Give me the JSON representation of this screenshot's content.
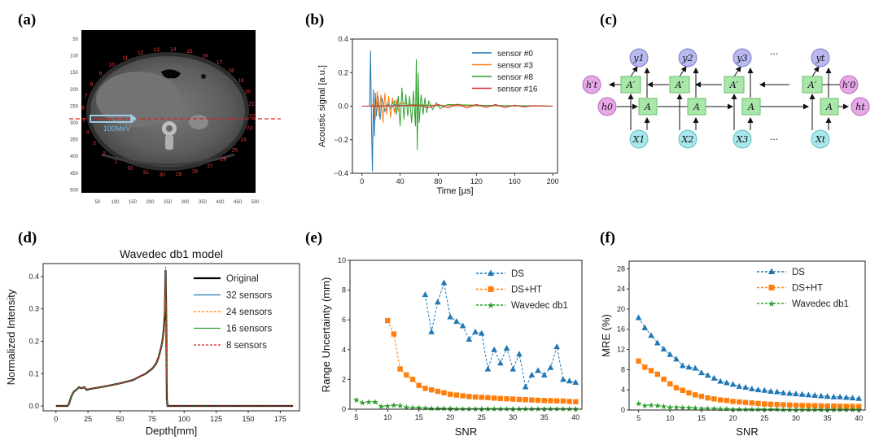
{
  "panels": {
    "a": "(a)",
    "b": "(b)",
    "c": "(c)",
    "d": "(d)",
    "e": "(e)",
    "f": "(f)"
  },
  "ct": {
    "beam_label": "100MeV",
    "x_ticks": [
      "50",
      "100",
      "150",
      "200",
      "250",
      "300",
      "350",
      "400",
      "450",
      "500"
    ],
    "y_ticks": [
      "50",
      "100",
      "150",
      "200",
      "250",
      "300",
      "350",
      "400",
      "450",
      "500"
    ],
    "sensor_numbers": [
      "10",
      "11",
      "12",
      "13",
      "14",
      "15",
      "16",
      "17",
      "18",
      "19",
      "20",
      "21",
      "22",
      "23",
      "24",
      "25",
      "26",
      "27",
      "28",
      "29",
      "30",
      "31",
      "32",
      "1",
      "2",
      "3",
      "4",
      "5",
      "6",
      "7",
      "8",
      "9"
    ]
  },
  "rnn": {
    "outputs": [
      "y1",
      "y2",
      "y3",
      "yt"
    ],
    "inputs": [
      "X1",
      "X2",
      "X3",
      "Xt"
    ],
    "cell_fwd": "A",
    "cell_bwd": "A′",
    "h0": "h0",
    "ht": "ht",
    "hpt": "h′t",
    "hp0": "h′0",
    "ellipsis": "···"
  },
  "chart_data": [
    {
      "id": "b",
      "type": "line",
      "xlabel": "Time [μs]",
      "ylabel": "Acoustic signal [a.u.]",
      "xlim": [
        -10,
        205
      ],
      "ylim": [
        -0.4,
        0.4
      ],
      "x_ticks": [
        0,
        40,
        80,
        120,
        160,
        200
      ],
      "y_ticks": [
        -0.4,
        -0.2,
        0.0,
        0.2,
        0.4
      ],
      "y_tick_labels": [
        "−0.4",
        "−0.2",
        "0.0",
        "0.2",
        "0.4"
      ],
      "grid": false,
      "legend": "top-right",
      "series": [
        {
          "name": "sensor #0",
          "color": "#1f77b4",
          "x": [
            0,
            5,
            8,
            9,
            10,
            11,
            12,
            13,
            14,
            15,
            17,
            19,
            21,
            24,
            27,
            30,
            34,
            40,
            50,
            60,
            70,
            80,
            90,
            100,
            120,
            140,
            160,
            180,
            200
          ],
          "y": [
            0,
            0,
            0,
            0.33,
            -0.1,
            -0.39,
            0.1,
            -0.18,
            0.08,
            -0.06,
            0.06,
            -0.08,
            0.05,
            -0.03,
            0.02,
            -0.015,
            0.01,
            0.005,
            0.005,
            0.004,
            0.004,
            0.003,
            0.003,
            0.002,
            0.002,
            0.002,
            0.001,
            0.001,
            0
          ]
        },
        {
          "name": "sensor #3",
          "color": "#ff7f0e",
          "x": [
            0,
            10,
            12,
            14,
            16,
            18,
            20,
            22,
            24,
            26,
            28,
            30,
            32,
            34,
            36,
            38,
            40,
            45,
            50,
            60,
            80,
            100,
            140,
            200
          ],
          "y": [
            0,
            0,
            0.02,
            -0.08,
            0.09,
            -0.06,
            0.07,
            -0.1,
            0.08,
            -0.05,
            0.06,
            -0.07,
            0.05,
            -0.04,
            0.04,
            -0.03,
            0.02,
            0.015,
            0.01,
            0.008,
            0.005,
            0.003,
            0.002,
            0
          ]
        },
        {
          "name": "sensor #8",
          "color": "#2ca02c",
          "x": [
            0,
            30,
            34,
            36,
            38,
            40,
            42,
            44,
            46,
            48,
            50,
            52,
            54,
            56,
            57,
            58,
            59,
            60,
            62,
            64,
            66,
            68,
            70,
            74,
            78,
            82,
            90,
            100,
            120,
            140,
            160,
            180,
            200
          ],
          "y": [
            0,
            0,
            0.03,
            -0.05,
            0.06,
            -0.12,
            0.11,
            -0.08,
            0.07,
            -0.06,
            0.06,
            -0.1,
            0.09,
            -0.12,
            0.28,
            -0.26,
            0.2,
            -0.1,
            0.07,
            -0.05,
            0.05,
            -0.04,
            0.03,
            -0.02,
            0.02,
            -0.015,
            0.01,
            0.008,
            0.006,
            0.004,
            0.003,
            0.002,
            0
          ]
        },
        {
          "name": "sensor #16",
          "color": "#d62728",
          "x": [
            0,
            60,
            70,
            80,
            90,
            100,
            110,
            120,
            130,
            140,
            150,
            160,
            170,
            180,
            200
          ],
          "y": [
            0,
            0.004,
            -0.008,
            0.01,
            -0.01,
            0.012,
            -0.01,
            0.01,
            -0.008,
            0.01,
            -0.008,
            0.006,
            -0.005,
            0.003,
            0
          ]
        }
      ]
    },
    {
      "id": "d",
      "type": "line",
      "title": "Wavedec db1 model",
      "xlabel": "Depth[mm]",
      "ylabel": "Normalized Intensity",
      "xlim": [
        -10,
        190
      ],
      "ylim": [
        -0.015,
        0.44
      ],
      "x_ticks": [
        0,
        25,
        50,
        75,
        100,
        125,
        150,
        175
      ],
      "y_ticks": [
        0.0,
        0.1,
        0.2,
        0.3,
        0.4
      ],
      "y_tick_labels": [
        "0.0",
        "0.1",
        "0.2",
        "0.3",
        "0.4"
      ],
      "grid": false,
      "legend": "top-right",
      "depth_mm": [
        0,
        9,
        10,
        12,
        14,
        16,
        18,
        20,
        22,
        24,
        26,
        30,
        40,
        50,
        60,
        65,
        70,
        75,
        78,
        80,
        82,
        83,
        84,
        85,
        85.5,
        86,
        86.5,
        87,
        88,
        100,
        125,
        150,
        185
      ],
      "series": [
        {
          "name": "Original",
          "color": "#000000",
          "style": "solid",
          "width": 2.2,
          "values": [
            0,
            0,
            0.005,
            0.03,
            0.045,
            0.05,
            0.058,
            0.055,
            0.058,
            0.05,
            0.052,
            0.055,
            0.062,
            0.07,
            0.08,
            0.09,
            0.1,
            0.115,
            0.13,
            0.15,
            0.18,
            0.2,
            0.23,
            0.29,
            0.42,
            0.3,
            0.02,
            0,
            0,
            0,
            0,
            0,
            0
          ]
        },
        {
          "name": "32 sensors",
          "color": "#1f77b4",
          "style": "solid",
          "width": 1.0,
          "values": [
            0,
            0,
            0.005,
            0.03,
            0.046,
            0.05,
            0.057,
            0.056,
            0.057,
            0.051,
            0.052,
            0.055,
            0.062,
            0.07,
            0.08,
            0.09,
            0.1,
            0.115,
            0.13,
            0.15,
            0.18,
            0.2,
            0.23,
            0.29,
            0.41,
            0.3,
            0.02,
            0,
            0,
            0,
            0,
            0,
            0
          ]
        },
        {
          "name": "24 sensors",
          "color": "#ff7f0e",
          "style": "dashed",
          "width": 1.0,
          "values": [
            0,
            0,
            0.005,
            0.03,
            0.046,
            0.05,
            0.057,
            0.056,
            0.057,
            0.051,
            0.052,
            0.055,
            0.062,
            0.07,
            0.08,
            0.09,
            0.1,
            0.115,
            0.13,
            0.15,
            0.18,
            0.2,
            0.23,
            0.29,
            0.41,
            0.3,
            0.02,
            0,
            0,
            0,
            0,
            0,
            0
          ]
        },
        {
          "name": "16 sensors",
          "color": "#2ca02c",
          "style": "solid",
          "width": 1.0,
          "values": [
            0,
            0,
            0.005,
            0.03,
            0.045,
            0.05,
            0.057,
            0.056,
            0.057,
            0.051,
            0.052,
            0.055,
            0.062,
            0.07,
            0.08,
            0.09,
            0.1,
            0.115,
            0.13,
            0.15,
            0.18,
            0.2,
            0.23,
            0.29,
            0.41,
            0.3,
            0.02,
            0,
            0,
            0,
            0,
            0,
            0
          ]
        },
        {
          "name": "8 sensors",
          "color": "#d62728",
          "style": "dashed",
          "width": 1.0,
          "values": [
            0,
            0,
            0.005,
            0.03,
            0.045,
            0.05,
            0.057,
            0.056,
            0.057,
            0.051,
            0.052,
            0.055,
            0.062,
            0.07,
            0.08,
            0.09,
            0.1,
            0.115,
            0.13,
            0.15,
            0.18,
            0.2,
            0.23,
            0.29,
            0.43,
            0.3,
            0.02,
            0,
            0,
            0,
            0,
            0,
            0
          ]
        }
      ]
    },
    {
      "id": "e",
      "type": "line",
      "xlabel": "SNR",
      "ylabel": "Range Uncertainty (mm)",
      "xlim": [
        4,
        41
      ],
      "ylim": [
        0,
        10
      ],
      "x_ticks": [
        5,
        10,
        15,
        20,
        25,
        30,
        35,
        40
      ],
      "y_ticks": [
        0,
        2,
        4,
        6,
        8,
        10
      ],
      "grid": false,
      "legend": "top-right",
      "series": [
        {
          "name": "DS",
          "color": "#1f77b4",
          "marker": "triangle",
          "x": [
            16,
            17,
            18,
            19,
            20,
            21,
            22,
            23,
            24,
            25,
            26,
            27,
            28,
            29,
            30,
            31,
            32,
            33,
            34,
            35,
            36,
            37,
            38,
            39,
            40
          ],
          "y": [
            7.7,
            5.2,
            7.2,
            8.5,
            6.2,
            5.9,
            5.6,
            4.7,
            5.2,
            5.1,
            2.7,
            4.0,
            3.1,
            4.1,
            2.7,
            3.7,
            1.5,
            2.3,
            2.6,
            2.3,
            2.8,
            4.2,
            2.0,
            1.9,
            1.8
          ]
        },
        {
          "name": "DS+HT",
          "color": "#ff7f0e",
          "marker": "square",
          "x": [
            10,
            11,
            12,
            13,
            14,
            15,
            16,
            17,
            18,
            19,
            20,
            21,
            22,
            23,
            24,
            25,
            26,
            27,
            28,
            29,
            30,
            31,
            32,
            33,
            34,
            35,
            36,
            37,
            38,
            39,
            40
          ],
          "y": [
            5.95,
            5.05,
            2.7,
            2.3,
            2.0,
            1.6,
            1.4,
            1.3,
            1.2,
            1.1,
            1.0,
            0.95,
            0.9,
            0.85,
            0.82,
            0.8,
            0.78,
            0.75,
            0.72,
            0.7,
            0.68,
            0.66,
            0.64,
            0.62,
            0.6,
            0.58,
            0.57,
            0.56,
            0.55,
            0.52,
            0.5
          ]
        },
        {
          "name": "Wavedec db1",
          "color": "#2ca02c",
          "marker": "star",
          "x": [
            5,
            6,
            7,
            8,
            9,
            10,
            11,
            12,
            13,
            14,
            15,
            16,
            17,
            18,
            19,
            20,
            21,
            22,
            23,
            24,
            25,
            26,
            27,
            28,
            29,
            30,
            31,
            32,
            33,
            34,
            35,
            36,
            37,
            38,
            39,
            40
          ],
          "y": [
            0.62,
            0.45,
            0.5,
            0.48,
            0.2,
            0.22,
            0.28,
            0.25,
            0.15,
            0.1,
            0.1,
            0.08,
            0.05,
            0.06,
            0.05,
            0.05,
            0.04,
            0.04,
            0.03,
            0.03,
            0.03,
            0.03,
            0.02,
            0.02,
            0.02,
            0.02,
            0.02,
            0.02,
            0.02,
            0.02,
            0.02,
            0.02,
            0.02,
            0.02,
            0.02,
            0.02
          ]
        }
      ]
    },
    {
      "id": "f",
      "type": "line",
      "xlabel": "SNR",
      "ylabel": "MRE (%)",
      "xlim": [
        3.5,
        41
      ],
      "ylim": [
        0,
        29.5
      ],
      "x_ticks": [
        5,
        10,
        15,
        20,
        25,
        30,
        35,
        40
      ],
      "y_ticks": [
        0,
        4,
        8,
        12,
        16,
        20,
        24,
        28
      ],
      "grid": false,
      "legend": "top-right",
      "series": [
        {
          "name": "DS",
          "color": "#1f77b4",
          "marker": "triangle",
          "x": [
            5,
            6,
            7,
            8,
            9,
            10,
            11,
            12,
            13,
            14,
            15,
            16,
            17,
            18,
            19,
            20,
            21,
            22,
            23,
            24,
            25,
            26,
            27,
            28,
            29,
            30,
            31,
            32,
            33,
            34,
            35,
            36,
            37,
            38,
            39,
            40
          ],
          "y": [
            18.3,
            16.3,
            14.8,
            13.3,
            12.1,
            11.0,
            10.1,
            8.8,
            8.5,
            8.3,
            7.4,
            6.9,
            6.3,
            5.7,
            5.4,
            5.1,
            4.7,
            4.5,
            4.2,
            4.0,
            3.9,
            3.7,
            3.6,
            3.4,
            3.3,
            3.2,
            3.1,
            3.0,
            2.9,
            2.8,
            2.7,
            2.6,
            2.6,
            2.5,
            2.4,
            2.3
          ]
        },
        {
          "name": "DS+HT",
          "color": "#ff7f0e",
          "marker": "square",
          "x": [
            5,
            6,
            7,
            8,
            9,
            10,
            11,
            12,
            13,
            14,
            15,
            16,
            17,
            18,
            19,
            20,
            21,
            22,
            23,
            24,
            25,
            26,
            27,
            28,
            29,
            30,
            31,
            32,
            33,
            34,
            35,
            36,
            37,
            38,
            39,
            40
          ],
          "y": [
            9.7,
            8.5,
            7.8,
            7.1,
            6.1,
            5.2,
            4.4,
            3.9,
            3.4,
            3.0,
            2.7,
            2.4,
            2.2,
            2.0,
            1.9,
            1.7,
            1.6,
            1.5,
            1.4,
            1.3,
            1.2,
            1.15,
            1.1,
            1.05,
            1.0,
            0.95,
            0.9,
            0.88,
            0.85,
            0.82,
            0.8,
            0.78,
            0.76,
            0.74,
            0.72,
            0.7
          ]
        },
        {
          "name": "Wavedec db1",
          "color": "#2ca02c",
          "marker": "star",
          "x": [
            5,
            6,
            7,
            8,
            9,
            10,
            11,
            12,
            13,
            14,
            15,
            16,
            17,
            18,
            19,
            20,
            21,
            22,
            23,
            24,
            25,
            26,
            27,
            28,
            29,
            30,
            31,
            32,
            33,
            34,
            35,
            36,
            37,
            38,
            39,
            40
          ],
          "y": [
            1.3,
            0.9,
            1.0,
            0.9,
            0.7,
            0.6,
            0.55,
            0.5,
            0.45,
            0.4,
            0.35,
            0.3,
            0.3,
            0.25,
            0.25,
            0.2,
            0.2,
            0.2,
            0.2,
            0.15,
            0.15,
            0.15,
            0.15,
            0.1,
            0.1,
            0.1,
            0.1,
            0.1,
            0.1,
            0.1,
            0.1,
            0.1,
            0.1,
            0.1,
            0.1,
            0.1
          ]
        }
      ]
    }
  ]
}
